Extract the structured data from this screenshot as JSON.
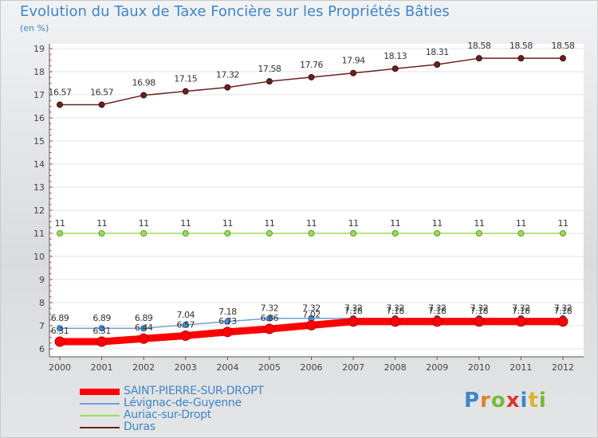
{
  "title": "Evolution du Taux de Taxe Foncière sur les Propriétés Bâties",
  "subtitle": "(en %)",
  "logo": "Proxiti",
  "chart_data": {
    "type": "line",
    "title": "Evolution du Taux de Taxe Foncière sur les Propriétés Bâties",
    "ylabel": "(en %)",
    "xlabel": "",
    "ylim": [
      6,
      19
    ],
    "yticks": [
      "6",
      "7",
      "8",
      "9",
      "10",
      "11",
      "12",
      "13",
      "14",
      "15",
      "16",
      "17",
      "18",
      "19"
    ],
    "x": [
      "2000",
      "2001",
      "2002",
      "2003",
      "2004",
      "2005",
      "2006",
      "2007",
      "2008",
      "2009",
      "2010",
      "2011",
      "2012"
    ],
    "series": [
      {
        "name": "SAINT-PIERRE-SUR-DROPT",
        "color": "#ff0000",
        "values": [
          6.31,
          6.31,
          6.44,
          6.57,
          6.73,
          6.86,
          7.02,
          7.18,
          7.18,
          7.18,
          7.18,
          7.18,
          7.18
        ],
        "labels": [
          "6.31",
          "6.31",
          "6.44",
          "6.57",
          "6.73",
          "6.86",
          "7.02",
          "7.18",
          "7.18",
          "7.18",
          "7.18",
          "7.18",
          "7.18"
        ]
      },
      {
        "name": "Lévignac-de-Guyenne",
        "color": "#6fa0d6",
        "values": [
          6.89,
          6.89,
          6.89,
          7.04,
          7.18,
          7.32,
          7.32,
          7.32,
          7.32,
          7.32,
          7.32,
          7.32,
          7.32
        ],
        "labels": [
          "6.89",
          "6.89",
          "6.89",
          "7.04",
          "7.18",
          "7.32",
          "7.32",
          "7.32",
          "7.32",
          "7.32",
          "7.32",
          "7.32",
          "7.32"
        ]
      },
      {
        "name": "Auriac-sur-Dropt",
        "color": "#99dd55",
        "values": [
          11,
          11,
          11,
          11,
          11,
          11,
          11,
          11,
          11,
          11,
          11,
          11,
          11
        ],
        "labels": [
          "11",
          "11",
          "11",
          "11",
          "11",
          "11",
          "11",
          "11",
          "11",
          "11",
          "11",
          "11",
          "11"
        ]
      },
      {
        "name": "Duras",
        "color": "#6b2020",
        "values": [
          16.57,
          16.57,
          16.98,
          17.15,
          17.32,
          17.58,
          17.76,
          17.94,
          18.13,
          18.31,
          18.58,
          18.58,
          18.58
        ],
        "labels": [
          "16.57",
          "16.57",
          "16.98",
          "17.15",
          "17.32",
          "17.58",
          "17.76",
          "17.94",
          "18.13",
          "18.31",
          "18.58",
          "18.58",
          "18.58"
        ]
      }
    ]
  }
}
